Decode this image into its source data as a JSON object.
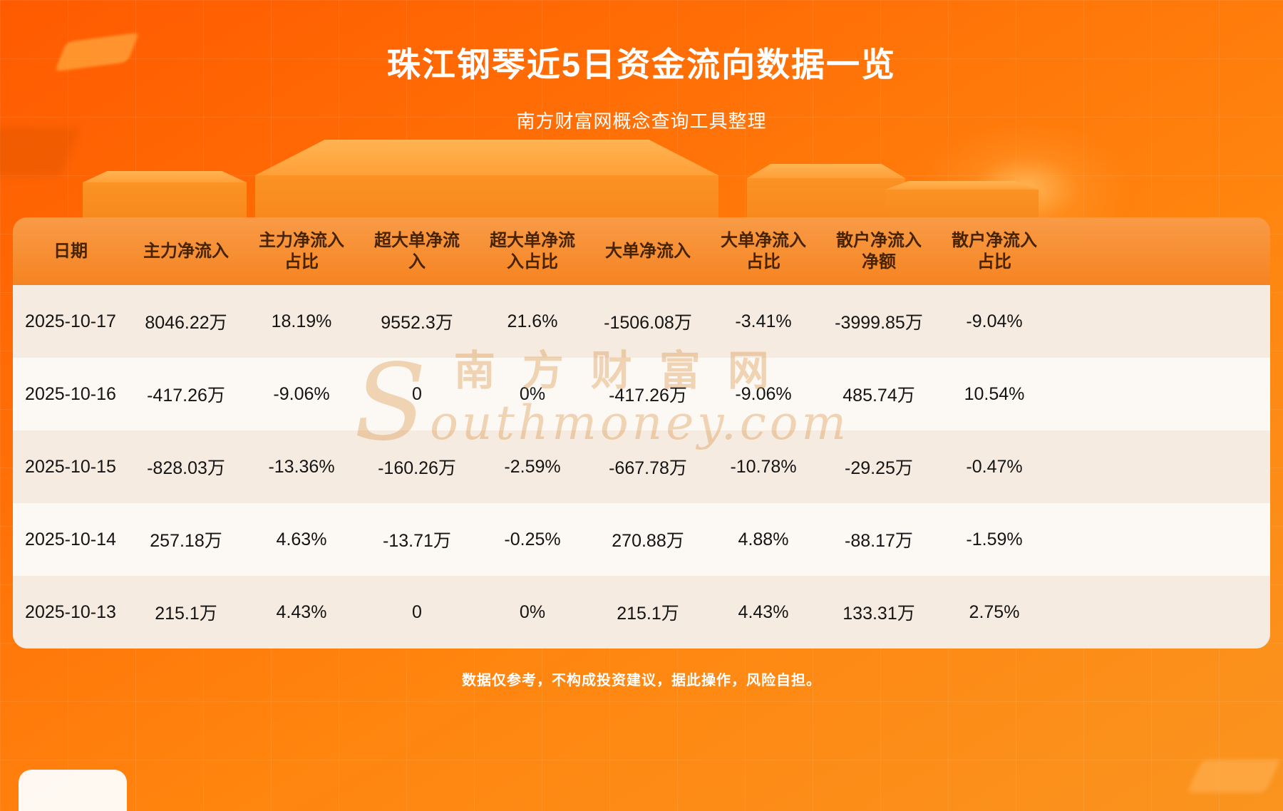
{
  "header": {
    "title": "珠江钢琴近5日资金流向数据一览",
    "subtitle": "南方财富网概念查询工具整理"
  },
  "chart_data": {
    "type": "table",
    "title": "珠江钢琴近5日资金流向数据一览",
    "columns": [
      "日期",
      "主力净流入",
      "主力净流入占比",
      "超大单净流入",
      "超大单净流入占比",
      "大单净流入",
      "大单净流入占比",
      "散户净流入净额",
      "散户净流入占比"
    ],
    "rows": [
      [
        "2025-10-17",
        "8046.22万",
        "18.19%",
        "9552.3万",
        "21.6%",
        "-1506.08万",
        "-3.41%",
        "-3999.85万",
        "-9.04%"
      ],
      [
        "2025-10-16",
        "-417.26万",
        "-9.06%",
        "0",
        "0%",
        "-417.26万",
        "-9.06%",
        "485.74万",
        "10.54%"
      ],
      [
        "2025-10-15",
        "-828.03万",
        "-13.36%",
        "-160.26万",
        "-2.59%",
        "-667.78万",
        "-10.78%",
        "-29.25万",
        "-0.47%"
      ],
      [
        "2025-10-14",
        "257.18万",
        "4.63%",
        "-13.71万",
        "-0.25%",
        "270.88万",
        "4.88%",
        "-88.17万",
        "-1.59%"
      ],
      [
        "2025-10-13",
        "215.1万",
        "4.43%",
        "0",
        "0%",
        "215.1万",
        "4.43%",
        "133.31万",
        "2.75%"
      ]
    ]
  },
  "table": {
    "column_labels_display": [
      "日期",
      "主力净流入",
      "主力净流入\n占比",
      "超大单净流\n入",
      "超大单净流\n入占比",
      "大单净流入",
      "大单净流入\n占比",
      "散户净流入\n净额",
      "散户净流入\n占比"
    ]
  },
  "watermark": {
    "cn": "南方财富网",
    "en": "Southmoney.com"
  },
  "footer": {
    "disclaimer": "数据仅参考，不构成投资建议，据此操作，风险自担。"
  },
  "colors": {
    "background_orange_top": "#ff5a00",
    "background_orange_bottom": "#fa941f",
    "table_header_orange": "#f78c2a",
    "row_cream": "#f6ebe0",
    "row_white": "#fcf8f4",
    "header_text": "#472301",
    "body_text": "#141414",
    "title_text": "#ffffff",
    "watermark_tan": "#dd9c52"
  }
}
